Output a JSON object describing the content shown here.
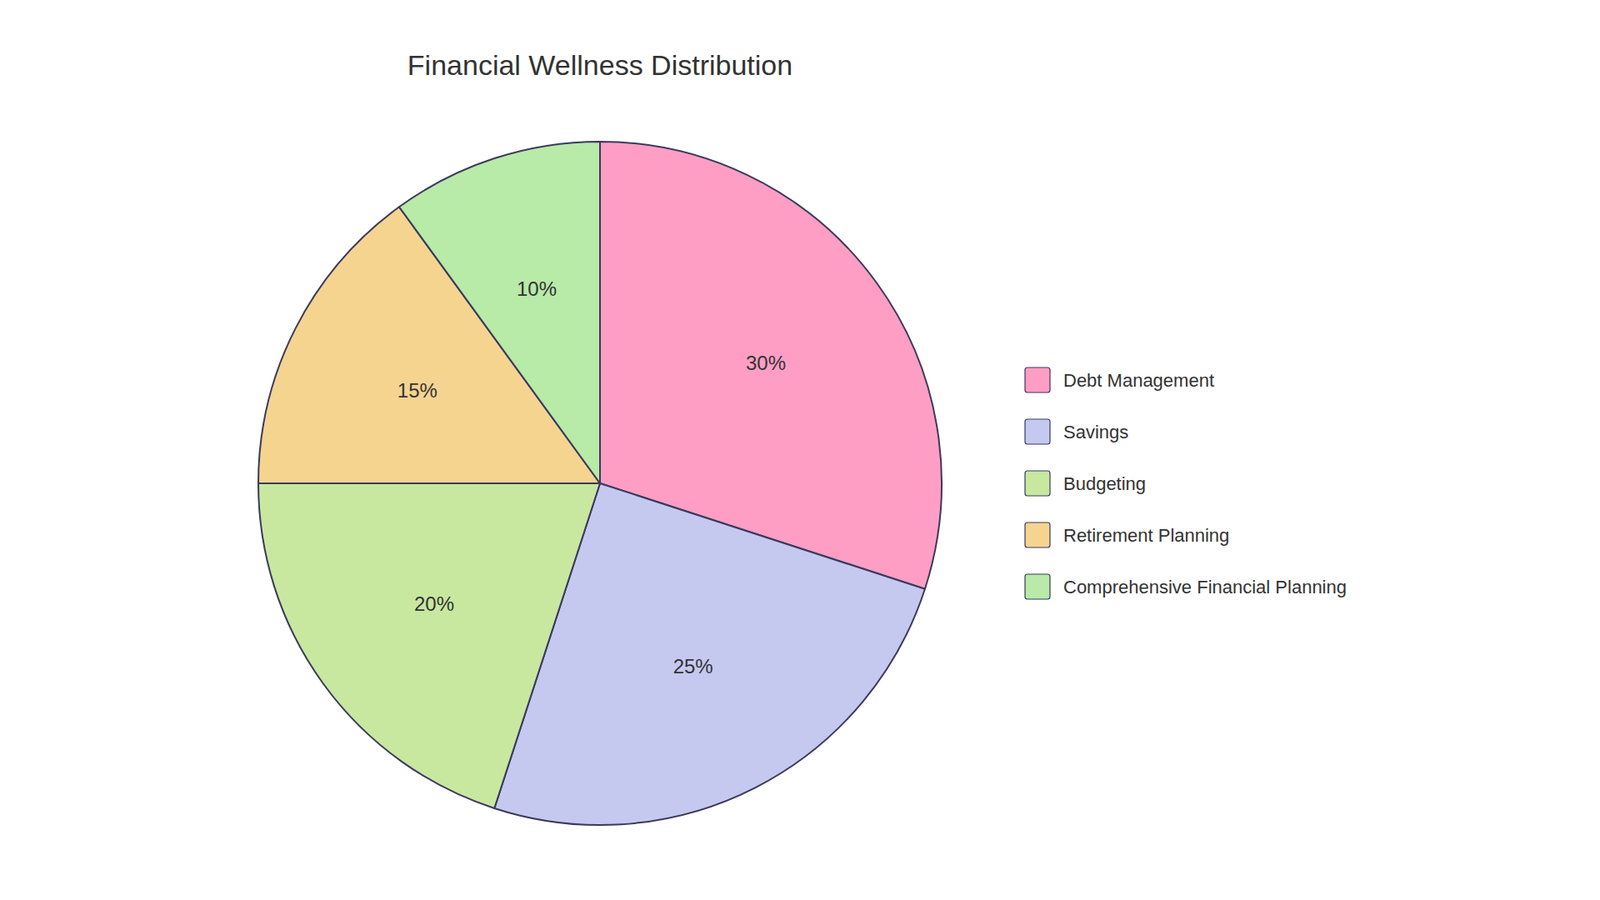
{
  "chart_data": {
    "type": "pie",
    "title": "Financial Wellness Distribution",
    "categories": [
      "Debt Management",
      "Savings",
      "Budgeting",
      "Retirement Planning",
      "Comprehensive Financial Planning"
    ],
    "values": [
      30,
      25,
      20,
      15,
      10
    ],
    "value_labels": [
      "30%",
      "25%",
      "20%",
      "15%",
      "10%"
    ],
    "colors": [
      "#FF9EC4",
      "#C5C9F0",
      "#C8E8A0",
      "#F5D490",
      "#B8EAA8"
    ],
    "data_labels": true,
    "legend": "right"
  }
}
